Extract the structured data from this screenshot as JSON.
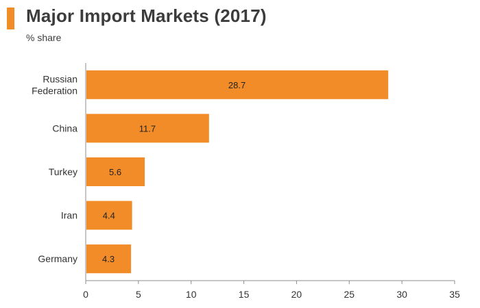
{
  "header": {
    "title": "Major Import Markets (2017)",
    "subtitle": "% share",
    "accent_color": "#f28c28"
  },
  "chart_data": {
    "type": "bar",
    "orientation": "horizontal",
    "title": "Major Import Markets (2017)",
    "subtitle": "% share",
    "categories": [
      [
        "Russian",
        "Federation"
      ],
      [
        "China"
      ],
      [
        "Turkey"
      ],
      [
        "Iran"
      ],
      [
        "Germany"
      ]
    ],
    "values": [
      28.7,
      11.7,
      5.6,
      4.4,
      4.3
    ],
    "value_labels": [
      "28.7",
      "11.7",
      "5.6",
      "4.4",
      "4.3"
    ],
    "xlim": [
      0,
      35
    ],
    "xticks": [
      0,
      5,
      10,
      15,
      20,
      25,
      30,
      35
    ],
    "grid": false,
    "legend": "none",
    "bar_color": "#f28c28",
    "axis_color": "#8c8c8c"
  }
}
